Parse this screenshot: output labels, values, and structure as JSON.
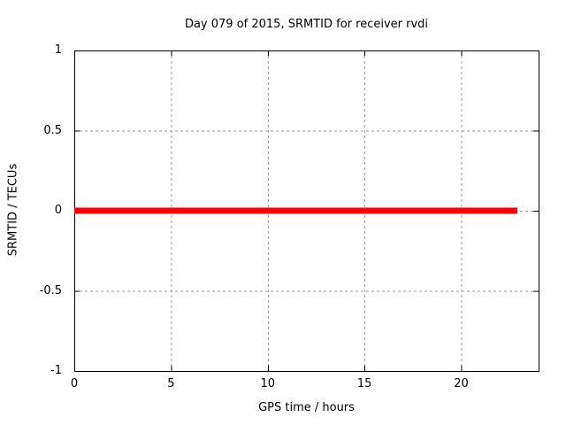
{
  "figure": {
    "background": "#ffffff"
  },
  "chart_data": {
    "type": "line",
    "title": "Day 079 of 2015, SRMTID for receiver rvdi",
    "xlabel": "GPS time / hours",
    "ylabel": "SRMTID / TECUs",
    "xlim": [
      0,
      24
    ],
    "ylim": [
      -1,
      1
    ],
    "xticks": [
      {
        "value": 0,
        "label": "0"
      },
      {
        "value": 5,
        "label": "5"
      },
      {
        "value": 10,
        "label": "10"
      },
      {
        "value": 15,
        "label": "15"
      },
      {
        "value": 20,
        "label": "20"
      }
    ],
    "yticks": [
      {
        "value": 1,
        "label": "1"
      },
      {
        "value": 0.5,
        "label": "0.5"
      },
      {
        "value": 0,
        "label": "0"
      },
      {
        "value": -0.5,
        "label": "-0.5"
      },
      {
        "value": -1,
        "label": "-1"
      }
    ],
    "grid": true,
    "legend": "none",
    "colors": {
      "border": "#000000",
      "grid": "#9e9e9e",
      "text": "#000000"
    },
    "series": [
      {
        "name": "SRMTID",
        "color": "#ff0000",
        "linewidth": 7,
        "x": [
          0,
          22.9
        ],
        "y": [
          0,
          0
        ]
      }
    ]
  }
}
